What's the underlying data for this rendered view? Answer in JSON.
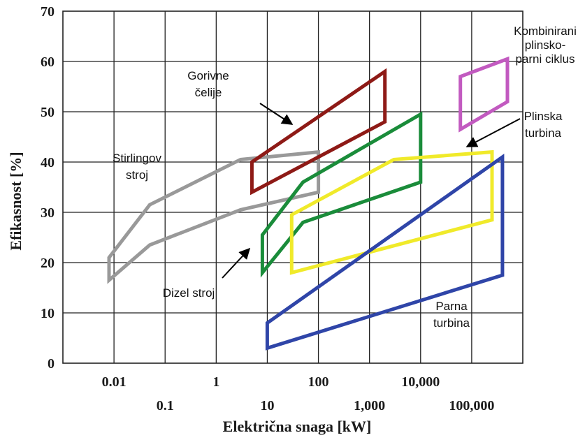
{
  "chart_data": {
    "type": "area",
    "title": "",
    "xlabel": "Električna snaga [kW]",
    "ylabel": "Efikasnost [%]",
    "x_scale": "log",
    "xlim": [
      0.001,
      1000000
    ],
    "ylim": [
      0,
      70
    ],
    "grid": true,
    "y_ticks": [
      "0",
      "10",
      "20",
      "30",
      "40",
      "50",
      "60",
      "70"
    ],
    "x_ticks_upper": [
      {
        "value": 0.01,
        "label": "0.01"
      },
      {
        "value": 1,
        "label": "1"
      },
      {
        "value": 100,
        "label": "100"
      },
      {
        "value": 10000,
        "label": "10,000"
      }
    ],
    "x_ticks_lower": [
      {
        "value": 0.1,
        "label": "0.1"
      },
      {
        "value": 10,
        "label": "10"
      },
      {
        "value": 1000,
        "label": "1,000"
      },
      {
        "value": 100000,
        "label": "100,000"
      }
    ],
    "series": [
      {
        "name": "Stirlingov stroj",
        "color": "#999999",
        "polygon": [
          [
            0.008,
            16.5
          ],
          [
            0.008,
            21
          ],
          [
            0.05,
            31.5
          ],
          [
            3,
            40.5
          ],
          [
            100,
            42
          ],
          [
            100,
            34
          ],
          [
            3,
            30.5
          ],
          [
            0.05,
            23.5
          ]
        ]
      },
      {
        "name": "Gorivne čelije",
        "color": "#8e1a16",
        "polygon": [
          [
            5,
            34
          ],
          [
            5,
            40
          ],
          [
            2000,
            58
          ],
          [
            2000,
            48
          ]
        ]
      },
      {
        "name": "Dizel stroj",
        "color": "#1a8c3a",
        "polygon": [
          [
            8,
            18
          ],
          [
            8,
            25.5
          ],
          [
            50,
            36
          ],
          [
            10000,
            49.5
          ],
          [
            10000,
            36
          ],
          [
            50,
            28
          ]
        ]
      },
      {
        "name": "Plinska turbina",
        "color": "#f0ea2a",
        "polygon": [
          [
            30,
            18
          ],
          [
            30,
            29.5
          ],
          [
            3000,
            40.5
          ],
          [
            250000,
            42
          ],
          [
            250000,
            28.5
          ],
          [
            30,
            18
          ]
        ]
      },
      {
        "name": "Parna turbina",
        "color": "#2f45a8",
        "polygon": [
          [
            10,
            3
          ],
          [
            10,
            8
          ],
          [
            400000,
            41
          ],
          [
            400000,
            17.5
          ]
        ]
      },
      {
        "name": "Kombinirani plinsko-parni ciklus",
        "color": "#c25ac0",
        "polygon": [
          [
            60000,
            46.5
          ],
          [
            60000,
            57
          ],
          [
            500000,
            60.5
          ],
          [
            500000,
            52
          ]
        ]
      }
    ],
    "annotations": [
      {
        "id": "stirling",
        "lines": [
          "Stirlingov",
          "stroj"
        ]
      },
      {
        "id": "gorivne",
        "lines": [
          "Gorivne",
          "čelije"
        ]
      },
      {
        "id": "dizel",
        "lines": [
          "Dizel stroj"
        ]
      },
      {
        "id": "plinska",
        "lines": [
          "Plinska",
          "turbina"
        ]
      },
      {
        "id": "parna",
        "lines": [
          "Parna",
          "turbina"
        ]
      },
      {
        "id": "kombinirani",
        "lines": [
          "Kombinirani",
          "plinsko-",
          "parni ciklus"
        ]
      }
    ]
  }
}
